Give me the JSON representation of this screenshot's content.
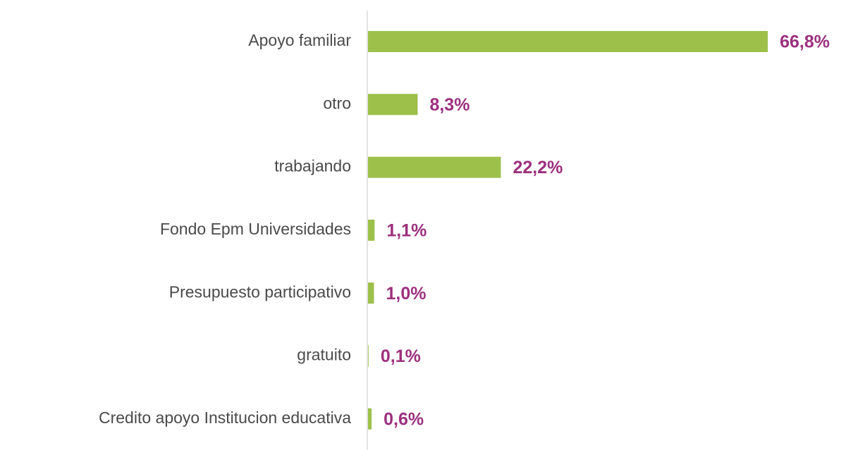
{
  "chart_data": {
    "type": "bar",
    "orientation": "horizontal",
    "categories": [
      "Apoyo familiar",
      "otro",
      "trabajando",
      "Fondo Epm Universidades",
      "Presupuesto participativo",
      "gratuito",
      "Credito apoyo Institucion educativa"
    ],
    "values": [
      66.8,
      8.3,
      22.2,
      1.1,
      1.0,
      0.1,
      0.6
    ],
    "value_labels": [
      "66,8%",
      "8,3%",
      "22,2%",
      "1,1%",
      "1,0%",
      "0,1%",
      "0,6%"
    ],
    "color": "#9dc04a"
  }
}
